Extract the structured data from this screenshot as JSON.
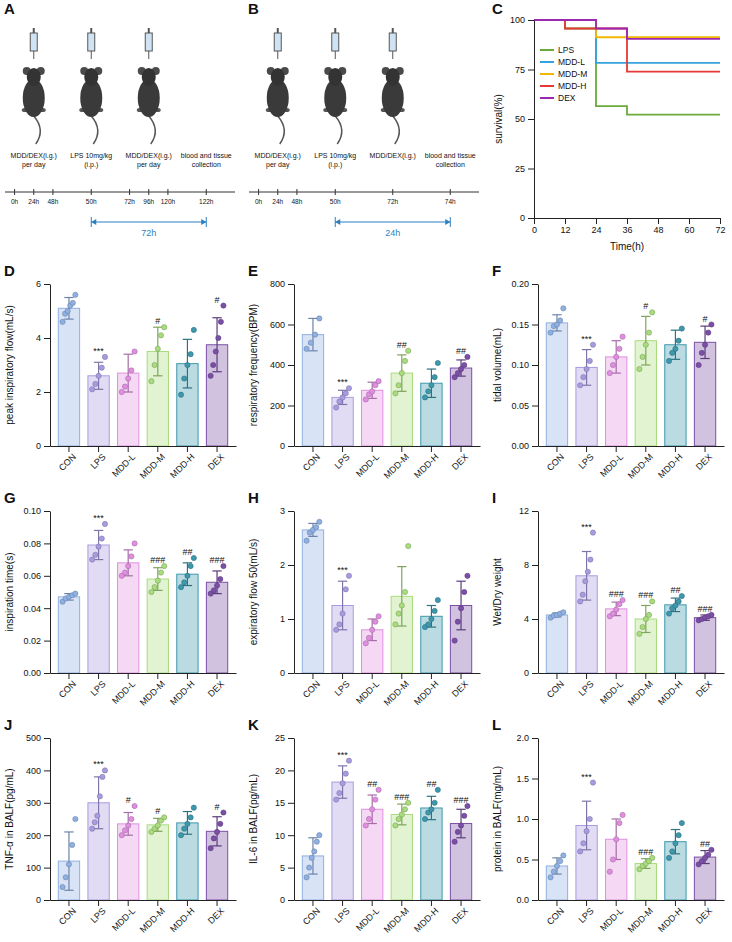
{
  "chart_data": [
    {
      "type": "line",
      "panel": "C",
      "line_style": "step",
      "legend": "upper left",
      "x_label": "Time(h)",
      "y_label": "survival(%)",
      "x": [
        0,
        12,
        24,
        36,
        48,
        60,
        72
      ],
      "xlim": [
        0,
        72
      ],
      "xticks": [
        0,
        12,
        24,
        36,
        48,
        60,
        72
      ],
      "ylim": [
        0,
        100
      ],
      "yticks": [
        0,
        25,
        50,
        75,
        100
      ],
      "series": [
        {
          "name": "LPS",
          "color": "#6aaa3a",
          "values": [
            100,
            95.7,
            56.5,
            52.2,
            52.2,
            52.2,
            52.2
          ]
        },
        {
          "name": "MDD-L",
          "color": "#35a3de",
          "values": [
            100,
            100,
            78.3,
            78.3,
            78.3,
            78.3,
            78.3
          ]
        },
        {
          "name": "MDD-M",
          "color": "#f2b705",
          "values": [
            100,
            100,
            91.3,
            91.3,
            91.3,
            91.3,
            91.3
          ]
        },
        {
          "name": "MDD-H",
          "color": "#e53935",
          "values": [
            100,
            95.7,
            95.7,
            73.9,
            73.9,
            73.9,
            73.9
          ]
        },
        {
          "name": "DEX",
          "color": "#9c27b0",
          "values": [
            100,
            100,
            95.7,
            90.5,
            90.5,
            90.5,
            90.5
          ]
        }
      ]
    },
    {
      "type": "bar",
      "panel": "D",
      "y_label": "peak inspiratory  flow(mL/s)",
      "categories": [
        "CON",
        "LPS",
        "MDD-L",
        "MDD-M",
        "MDD-H",
        "DEX"
      ],
      "values": [
        5.1,
        2.6,
        2.7,
        3.5,
        3.05,
        3.75
      ],
      "errors": [
        0.4,
        0.5,
        0.7,
        0.9,
        0.9,
        1.0
      ],
      "points": [
        [
          4.6,
          4.9,
          5.0,
          5.2,
          5.3,
          5.6
        ],
        [
          2.1,
          2.3,
          2.6,
          2.9,
          3.3
        ],
        [
          2.0,
          2.2,
          2.5,
          2.8,
          3.5
        ],
        [
          2.4,
          3.0,
          3.6,
          4.1,
          4.4
        ],
        [
          1.9,
          2.5,
          3.0,
          3.4,
          4.3
        ],
        [
          2.6,
          3.0,
          3.5,
          4.0,
          4.6,
          5.2
        ]
      ],
      "significance": [
        null,
        "***",
        null,
        "#",
        null,
        "#"
      ],
      "colors": [
        "#8fb0e3",
        "#a99be0",
        "#e08fe0",
        "#a8dc7c",
        "#3d98ad",
        "#7b4fa6"
      ],
      "ylim": [
        0,
        6
      ],
      "yticks": [
        0,
        2,
        4,
        6
      ]
    },
    {
      "type": "bar",
      "panel": "E",
      "y_label": "respiratory frequency(BPM)",
      "categories": [
        "CON",
        "LPS",
        "MDD-L",
        "MDD-M",
        "MDD-H",
        "DEX"
      ],
      "values": [
        550,
        240,
        275,
        360,
        310,
        385
      ],
      "errors": [
        80,
        35,
        40,
        90,
        70,
        40
      ],
      "points": [
        [
          480,
          510,
          550,
          630
        ],
        [
          190,
          220,
          240,
          260,
          285
        ],
        [
          230,
          255,
          270,
          300,
          320
        ],
        [
          260,
          300,
          360,
          420,
          470
        ],
        [
          240,
          270,
          300,
          340,
          410
        ],
        [
          340,
          360,
          380,
          400,
          440
        ]
      ],
      "significance": [
        null,
        "***",
        null,
        "##",
        null,
        "##"
      ],
      "colors": [
        "#8fb0e3",
        "#a99be0",
        "#e08fe0",
        "#a8dc7c",
        "#3d98ad",
        "#7b4fa6"
      ],
      "ylim": [
        0,
        800
      ],
      "yticks": [
        0,
        200,
        400,
        600,
        800
      ]
    },
    {
      "type": "bar",
      "panel": "F",
      "y_label": "tidal volume(mL)",
      "categories": [
        "CON",
        "LPS",
        "MDD-L",
        "MDD-M",
        "MDD-H",
        "DEX"
      ],
      "values": [
        0.152,
        0.097,
        0.11,
        0.13,
        0.125,
        0.128
      ],
      "errors": [
        0.01,
        0.022,
        0.02,
        0.03,
        0.018,
        0.02
      ],
      "points": [
        [
          0.14,
          0.148,
          0.15,
          0.155,
          0.17
        ],
        [
          0.075,
          0.085,
          0.095,
          0.105,
          0.125
        ],
        [
          0.09,
          0.1,
          0.11,
          0.12,
          0.135
        ],
        [
          0.095,
          0.11,
          0.125,
          0.14,
          0.165
        ],
        [
          0.105,
          0.115,
          0.12,
          0.13,
          0.145
        ],
        [
          0.1,
          0.115,
          0.125,
          0.14,
          0.15
        ]
      ],
      "significance": [
        null,
        "***",
        null,
        "#",
        null,
        "#"
      ],
      "colors": [
        "#8fb0e3",
        "#a99be0",
        "#e08fe0",
        "#a8dc7c",
        "#3d98ad",
        "#7b4fa6"
      ],
      "ylim": [
        0,
        0.2
      ],
      "yticks": [
        {
          "value": 0,
          "label": "0.00"
        },
        {
          "value": 0.05,
          "label": "0.05"
        },
        {
          "value": 0.1,
          "label": "0.10"
        },
        {
          "value": 0.15,
          "label": "0.15"
        },
        {
          "value": 0.2,
          "label": "0.20"
        }
      ]
    },
    {
      "type": "bar",
      "panel": "G",
      "y_label": "inspiration time(s)",
      "categories": [
        "CON",
        "LPS",
        "MDD-L",
        "MDD-M",
        "MDD-H",
        "DEX"
      ],
      "values": [
        0.047,
        0.079,
        0.068,
        0.058,
        0.061,
        0.056
      ],
      "errors": [
        0.002,
        0.009,
        0.008,
        0.007,
        0.007,
        0.007
      ],
      "points": [
        [
          0.044,
          0.046,
          0.047,
          0.048,
          0.049
        ],
        [
          0.07,
          0.073,
          0.078,
          0.083,
          0.092
        ],
        [
          0.06,
          0.062,
          0.066,
          0.072,
          0.08
        ],
        [
          0.05,
          0.053,
          0.057,
          0.062,
          0.066
        ],
        [
          0.053,
          0.056,
          0.06,
          0.066,
          0.071
        ],
        [
          0.049,
          0.051,
          0.054,
          0.058,
          0.066
        ]
      ],
      "significance": [
        null,
        "***",
        null,
        "###",
        "##",
        "###"
      ],
      "colors": [
        "#8fb0e3",
        "#a99be0",
        "#e08fe0",
        "#a8dc7c",
        "#3d98ad",
        "#7b4fa6"
      ],
      "ylim": [
        0,
        0.1
      ],
      "yticks": [
        {
          "value": 0,
          "label": "0.00"
        },
        {
          "value": 0.02,
          "label": "0.02"
        },
        {
          "value": 0.04,
          "label": "0.04"
        },
        {
          "value": 0.06,
          "label": "0.06"
        },
        {
          "value": 0.08,
          "label": "0.08"
        },
        {
          "value": 0.1,
          "label": "0.10"
        }
      ]
    },
    {
      "type": "bar",
      "panel": "H",
      "y_label": "expiratory flow 50(mL/s)",
      "categories": [
        "CON",
        "LPS",
        "MDD-L",
        "MDD-M",
        "MDD-H",
        "DEX"
      ],
      "values": [
        2.65,
        1.25,
        0.8,
        1.42,
        1.05,
        1.25
      ],
      "errors": [
        0.12,
        0.45,
        0.2,
        0.55,
        0.2,
        0.45
      ],
      "points": [
        [
          2.45,
          2.6,
          2.65,
          2.7,
          2.8
        ],
        [
          0.8,
          0.9,
          1.1,
          1.55,
          1.8
        ],
        [
          0.55,
          0.65,
          0.8,
          0.95,
          1.05
        ],
        [
          0.9,
          1.1,
          1.25,
          1.5,
          2.35
        ],
        [
          0.85,
          0.9,
          1.0,
          1.15,
          1.35
        ],
        [
          0.6,
          0.95,
          1.2,
          1.5,
          1.8
        ]
      ],
      "significance": [
        null,
        "***",
        null,
        null,
        null,
        null
      ],
      "colors": [
        "#8fb0e3",
        "#a99be0",
        "#e08fe0",
        "#a8dc7c",
        "#3d98ad",
        "#7b4fa6"
      ],
      "ylim": [
        0,
        3
      ],
      "yticks": [
        0,
        1,
        2,
        3
      ]
    },
    {
      "type": "bar",
      "panel": "I",
      "y_label": "Wet/Dry weight",
      "categories": [
        "CON",
        "LPS",
        "MDD-L",
        "MDD-M",
        "MDD-H",
        "DEX"
      ],
      "values": [
        4.3,
        7.2,
        4.75,
        4.0,
        5.05,
        4.1
      ],
      "errors": [
        0.15,
        1.8,
        0.5,
        1.0,
        0.5,
        0.2
      ],
      "points": [
        [
          4.1,
          4.25,
          4.3,
          4.4,
          4.5
        ],
        [
          5.3,
          5.8,
          6.8,
          7.5,
          8.4,
          10.4
        ],
        [
          4.2,
          4.4,
          4.7,
          5.1,
          5.4
        ],
        [
          2.9,
          3.4,
          4.0,
          4.3,
          5.3
        ],
        [
          4.4,
          4.8,
          5.0,
          5.3,
          5.7
        ],
        [
          3.9,
          4.0,
          4.1,
          4.2,
          4.3
        ]
      ],
      "significance": [
        null,
        "***",
        "###",
        "###",
        "##",
        "###"
      ],
      "colors": [
        "#8fb0e3",
        "#a99be0",
        "#e08fe0",
        "#a8dc7c",
        "#3d98ad",
        "#7b4fa6"
      ],
      "ylim": [
        0,
        12
      ],
      "yticks": [
        0,
        4,
        8,
        12
      ]
    },
    {
      "type": "bar",
      "panel": "J",
      "y_label": "TNF-α in BALF(pg/mL)",
      "categories": [
        "CON",
        "LPS",
        "MDD-L",
        "MDD-M",
        "MDD-H",
        "DEX"
      ],
      "values": [
        120,
        300,
        235,
        232,
        238,
        212
      ],
      "errors": [
        90,
        80,
        35,
        20,
        35,
        45
      ],
      "points": [
        [
          40,
          70,
          110,
          170,
          250
        ],
        [
          220,
          240,
          260,
          320,
          380,
          400
        ],
        [
          200,
          215,
          230,
          250,
          290
        ],
        [
          210,
          220,
          230,
          245,
          255
        ],
        [
          200,
          220,
          235,
          255,
          285
        ],
        [
          160,
          190,
          210,
          235,
          270
        ]
      ],
      "significance": [
        null,
        "***",
        "#",
        "#",
        null,
        "#"
      ],
      "colors": [
        "#8fb0e3",
        "#a99be0",
        "#e08fe0",
        "#a8dc7c",
        "#3d98ad",
        "#7b4fa6"
      ],
      "ylim": [
        0,
        500
      ],
      "yticks": [
        0,
        100,
        200,
        300,
        400,
        500
      ]
    },
    {
      "type": "bar",
      "panel": "K",
      "y_label": "IL-6 in BALF(pg/mL)",
      "categories": [
        "CON",
        "LPS",
        "MDD-L",
        "MDD-M",
        "MDD-H",
        "DEX"
      ],
      "values": [
        6.8,
        18.2,
        14.0,
        13.2,
        14.2,
        11.8
      ],
      "errors": [
        2.8,
        2.5,
        2.2,
        1.6,
        1.8,
        2.2
      ],
      "points": [
        [
          3.5,
          5.0,
          6.5,
          7.5,
          9.0,
          10.0
        ],
        [
          15.5,
          16.5,
          18.0,
          19.5,
          21.5
        ],
        [
          11.5,
          12.5,
          14.0,
          15.5,
          17.0
        ],
        [
          11.5,
          12.5,
          13.2,
          14.0,
          15.0
        ],
        [
          12.5,
          13.5,
          14.0,
          15.0,
          17.0
        ],
        [
          9.0,
          10.5,
          11.5,
          13.0,
          14.5
        ]
      ],
      "significance": [
        null,
        "***",
        "##",
        "###",
        "##",
        "###"
      ],
      "colors": [
        "#8fb0e3",
        "#a99be0",
        "#e08fe0",
        "#a8dc7c",
        "#3d98ad",
        "#7b4fa6"
      ],
      "ylim": [
        0,
        25
      ],
      "yticks": [
        0,
        5,
        10,
        15,
        20,
        25
      ]
    },
    {
      "type": "bar",
      "panel": "L",
      "y_label": "protein in BALF(mg/mL)",
      "categories": [
        "CON",
        "LPS",
        "MDD-L",
        "MDD-M",
        "MDD-H",
        "DEX"
      ],
      "values": [
        0.42,
        0.92,
        0.75,
        0.45,
        0.72,
        0.53
      ],
      "errors": [
        0.1,
        0.3,
        0.25,
        0.06,
        0.15,
        0.08
      ],
      "points": [
        [
          0.28,
          0.35,
          0.42,
          0.48,
          0.55
        ],
        [
          0.6,
          0.7,
          0.85,
          1.0,
          1.45
        ],
        [
          0.35,
          0.5,
          0.75,
          0.95,
          1.05
        ],
        [
          0.38,
          0.42,
          0.45,
          0.48,
          0.52
        ],
        [
          0.52,
          0.6,
          0.7,
          0.8,
          0.95
        ],
        [
          0.44,
          0.48,
          0.52,
          0.56,
          0.62
        ]
      ],
      "significance": [
        null,
        "***",
        null,
        "###",
        null,
        "##"
      ],
      "colors": [
        "#8fb0e3",
        "#a99be0",
        "#e08fe0",
        "#a8dc7c",
        "#3d98ad",
        "#7b4fa6"
      ],
      "ylim": [
        0,
        2
      ],
      "yticks": [
        {
          "value": 0,
          "label": "0.0"
        },
        {
          "value": 0.5,
          "label": "0.5"
        },
        {
          "value": 1,
          "label": "1.0"
        },
        {
          "value": 1.5,
          "label": "1.5"
        },
        {
          "value": 2,
          "label": "2.0"
        }
      ]
    }
  ],
  "diagrams": [
    {
      "panel": "A",
      "steps": [
        {
          "label": "MDD/DEX(i.g.) per day",
          "times": [
            "0h",
            "24h",
            "48h"
          ]
        },
        {
          "label": "LPS 10mg/kg (i.p.)",
          "times": [
            "50h"
          ]
        },
        {
          "label": "MDD/DEX(i.g.) per day",
          "times": [
            "72h",
            "96h",
            "120h"
          ]
        },
        {
          "label": "blood and tissue collection",
          "times": [
            "122h"
          ]
        }
      ],
      "span": "72h"
    },
    {
      "panel": "B",
      "steps": [
        {
          "label": "MDD/DEX(i.g.) per day",
          "times": [
            "0h",
            "24h",
            "48h"
          ]
        },
        {
          "label": "LPS 10mg/kg (i.p.)",
          "times": [
            "50h"
          ]
        },
        {
          "label": "MDD/DEX(i.g.)",
          "times": [
            "72h"
          ]
        },
        {
          "label": "blood and tissue collection",
          "times": [
            "74h"
          ]
        }
      ],
      "span": "24h"
    }
  ]
}
